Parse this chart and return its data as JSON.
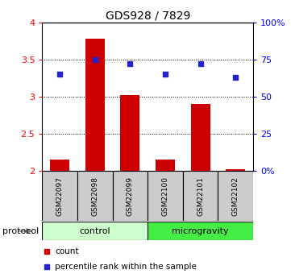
{
  "title": "GDS928 / 7829",
  "samples": [
    "GSM22097",
    "GSM22098",
    "GSM22099",
    "GSM22100",
    "GSM22101",
    "GSM22102"
  ],
  "bar_values": [
    2.15,
    3.78,
    3.02,
    2.15,
    2.9,
    2.02
  ],
  "bar_bottom": 2.0,
  "percentile_values": [
    65,
    75,
    72,
    65,
    72,
    63
  ],
  "ylim_left": [
    2.0,
    4.0
  ],
  "ylim_right": [
    0,
    100
  ],
  "yticks_left": [
    2.0,
    2.5,
    3.0,
    3.5,
    4.0
  ],
  "ytick_labels_left": [
    "2",
    "2.5",
    "3",
    "3.5",
    "4"
  ],
  "yticks_right": [
    0,
    25,
    50,
    75,
    100
  ],
  "ytick_labels_right": [
    "0%",
    "25",
    "50",
    "75",
    "100%"
  ],
  "bar_color": "#cc0000",
  "square_color": "#2222cc",
  "control_color": "#ccffcc",
  "microgravity_color": "#44ee44",
  "sample_label_bgcolor": "#cccccc",
  "legend_count_label": "count",
  "legend_percentile_label": "percentile rank within the sample",
  "bar_width": 0.55,
  "n_control": 3,
  "n_micro": 3
}
